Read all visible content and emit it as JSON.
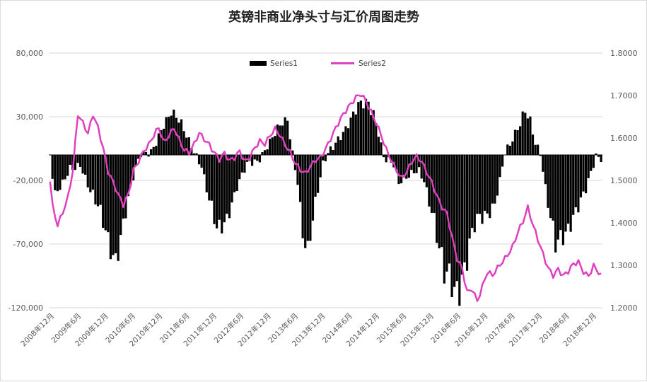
{
  "chart_data": {
    "type": "bar+line",
    "title": "英镑非商业净头寸与汇价周图走势",
    "xlabel": "",
    "ylabel": "",
    "y_left": {
      "ticks": [
        "80,000",
        "30,000",
        "-20,000",
        "-70,000",
        "-120,000"
      ],
      "range": [
        -120000,
        80000
      ]
    },
    "y_right": {
      "ticks": [
        "1.8000",
        "1.7000",
        "1.6000",
        "1.5000",
        "1.4000",
        "1.3000",
        "1.2000"
      ],
      "range": [
        1.2,
        1.8
      ]
    },
    "x_ticks": [
      "2008年12月",
      "2009年6月",
      "2009年12月",
      "2010年6月",
      "2010年12月",
      "2011年6月",
      "2011年12月",
      "2012年6月",
      "2012年12月",
      "2013年6月",
      "2013年12月",
      "2014年6月",
      "2014年12月",
      "2015年6月",
      "2015年12月",
      "2016年6月",
      "2016年12月",
      "2017年6月",
      "2017年12月",
      "2018年6月",
      "2018年12月"
    ],
    "legend_position": "top",
    "grid": true,
    "series": [
      {
        "name": "Series1",
        "kind": "bar",
        "axis": "left",
        "color": "#000000",
        "knots": [
          [
            0,
            0
          ],
          [
            2,
            -35000
          ],
          [
            5,
            -25000
          ],
          [
            8,
            -10000
          ],
          [
            12,
            -5000
          ],
          [
            16,
            -30000
          ],
          [
            20,
            -50000
          ],
          [
            23,
            -65000
          ],
          [
            26,
            -75000
          ],
          [
            30,
            -45000
          ],
          [
            33,
            -20000
          ],
          [
            36,
            0
          ],
          [
            40,
            5000
          ],
          [
            44,
            20000
          ],
          [
            48,
            30000
          ],
          [
            52,
            25000
          ],
          [
            56,
            10000
          ],
          [
            60,
            -10000
          ],
          [
            63,
            -40000
          ],
          [
            66,
            -60000
          ],
          [
            70,
            -45000
          ],
          [
            74,
            -25000
          ],
          [
            78,
            -10000
          ],
          [
            82,
            -5000
          ],
          [
            86,
            10000
          ],
          [
            90,
            20000
          ],
          [
            94,
            25000
          ],
          [
            96,
            0
          ],
          [
            98,
            -20000
          ],
          [
            100,
            -55000
          ],
          [
            102,
            -70000
          ],
          [
            104,
            -50000
          ],
          [
            106,
            -30000
          ],
          [
            108,
            -10000
          ],
          [
            110,
            0
          ],
          [
            114,
            15000
          ],
          [
            118,
            25000
          ],
          [
            122,
            35000
          ],
          [
            126,
            40000
          ],
          [
            128,
            35000
          ],
          [
            130,
            20000
          ],
          [
            132,
            0
          ],
          [
            134,
            -5000
          ],
          [
            136,
            -10000
          ],
          [
            138,
            -25000
          ],
          [
            140,
            -20000
          ],
          [
            142,
            -15000
          ],
          [
            144,
            -10000
          ],
          [
            146,
            -10000
          ],
          [
            148,
            -20000
          ],
          [
            150,
            -40000
          ],
          [
            152,
            -60000
          ],
          [
            154,
            -80000
          ],
          [
            156,
            -90000
          ],
          [
            158,
            -85000
          ],
          [
            160,
            -95000
          ],
          [
            162,
            -100000
          ],
          [
            164,
            -95000
          ],
          [
            166,
            -80000
          ],
          [
            168,
            -60000
          ],
          [
            170,
            -50000
          ],
          [
            172,
            -45000
          ],
          [
            174,
            -40000
          ],
          [
            176,
            -35000
          ],
          [
            178,
            -20000
          ],
          [
            180,
            0
          ],
          [
            182,
            5000
          ],
          [
            184,
            15000
          ],
          [
            186,
            25000
          ],
          [
            188,
            40000
          ],
          [
            190,
            30000
          ],
          [
            192,
            10000
          ],
          [
            194,
            0
          ],
          [
            196,
            -30000
          ],
          [
            198,
            -55000
          ],
          [
            200,
            -70000
          ],
          [
            202,
            -60000
          ],
          [
            204,
            -55000
          ],
          [
            206,
            -50000
          ],
          [
            208,
            -45000
          ],
          [
            210,
            -40000
          ],
          [
            212,
            -30000
          ],
          [
            214,
            -15000
          ],
          [
            216,
            0
          ],
          [
            218,
            0
          ]
        ],
        "n": 219
      },
      {
        "name": "Series2",
        "kind": "line",
        "axis": "right",
        "color": "#e040c0",
        "knots": [
          [
            0,
            1.5
          ],
          [
            1,
            1.44
          ],
          [
            3,
            1.4
          ],
          [
            5,
            1.43
          ],
          [
            7,
            1.46
          ],
          [
            9,
            1.52
          ],
          [
            11,
            1.65
          ],
          [
            13,
            1.63
          ],
          [
            15,
            1.61
          ],
          [
            17,
            1.66
          ],
          [
            19,
            1.63
          ],
          [
            21,
            1.58
          ],
          [
            23,
            1.52
          ],
          [
            25,
            1.49
          ],
          [
            27,
            1.46
          ],
          [
            29,
            1.44
          ],
          [
            31,
            1.47
          ],
          [
            33,
            1.53
          ],
          [
            35,
            1.55
          ],
          [
            37,
            1.57
          ],
          [
            39,
            1.58
          ],
          [
            41,
            1.6
          ],
          [
            43,
            1.62
          ],
          [
            45,
            1.59
          ],
          [
            47,
            1.61
          ],
          [
            49,
            1.63
          ],
          [
            51,
            1.6
          ],
          [
            53,
            1.57
          ],
          [
            55,
            1.56
          ],
          [
            57,
            1.58
          ],
          [
            59,
            1.61
          ],
          [
            61,
            1.6
          ],
          [
            63,
            1.59
          ],
          [
            65,
            1.57
          ],
          [
            67,
            1.55
          ],
          [
            69,
            1.56
          ],
          [
            71,
            1.54
          ],
          [
            73,
            1.55
          ],
          [
            75,
            1.57
          ],
          [
            77,
            1.55
          ],
          [
            79,
            1.56
          ],
          [
            81,
            1.58
          ],
          [
            83,
            1.59
          ],
          [
            85,
            1.58
          ],
          [
            87,
            1.6
          ],
          [
            89,
            1.62
          ],
          [
            91,
            1.61
          ],
          [
            93,
            1.59
          ],
          [
            95,
            1.57
          ],
          [
            97,
            1.54
          ],
          [
            99,
            1.52
          ],
          [
            101,
            1.51
          ],
          [
            103,
            1.53
          ],
          [
            105,
            1.55
          ],
          [
            107,
            1.56
          ],
          [
            109,
            1.58
          ],
          [
            111,
            1.6
          ],
          [
            113,
            1.62
          ],
          [
            115,
            1.64
          ],
          [
            117,
            1.66
          ],
          [
            119,
            1.68
          ],
          [
            121,
            1.7
          ],
          [
            123,
            1.71
          ],
          [
            125,
            1.69
          ],
          [
            127,
            1.66
          ],
          [
            129,
            1.63
          ],
          [
            131,
            1.6
          ],
          [
            133,
            1.57
          ],
          [
            135,
            1.55
          ],
          [
            137,
            1.53
          ],
          [
            139,
            1.51
          ],
          [
            141,
            1.52
          ],
          [
            143,
            1.54
          ],
          [
            145,
            1.55
          ],
          [
            147,
            1.54
          ],
          [
            149,
            1.52
          ],
          [
            151,
            1.5
          ],
          [
            153,
            1.47
          ],
          [
            155,
            1.44
          ],
          [
            157,
            1.42
          ],
          [
            159,
            1.36
          ],
          [
            161,
            1.31
          ],
          [
            163,
            1.29
          ],
          [
            165,
            1.24
          ],
          [
            167,
            1.25
          ],
          [
            169,
            1.22
          ],
          [
            171,
            1.25
          ],
          [
            173,
            1.28
          ],
          [
            175,
            1.27
          ],
          [
            177,
            1.29
          ],
          [
            179,
            1.31
          ],
          [
            181,
            1.33
          ],
          [
            183,
            1.35
          ],
          [
            185,
            1.38
          ],
          [
            187,
            1.4
          ],
          [
            189,
            1.43
          ],
          [
            191,
            1.39
          ],
          [
            193,
            1.36
          ],
          [
            195,
            1.33
          ],
          [
            197,
            1.3
          ],
          [
            199,
            1.28
          ],
          [
            201,
            1.29
          ],
          [
            203,
            1.27
          ],
          [
            205,
            1.28
          ],
          [
            207,
            1.3
          ],
          [
            209,
            1.31
          ],
          [
            211,
            1.29
          ],
          [
            213,
            1.28
          ],
          [
            215,
            1.3
          ],
          [
            218,
            1.27
          ]
        ]
      }
    ]
  },
  "legend": {
    "series1_label": "Series1",
    "series2_label": "Series2"
  }
}
